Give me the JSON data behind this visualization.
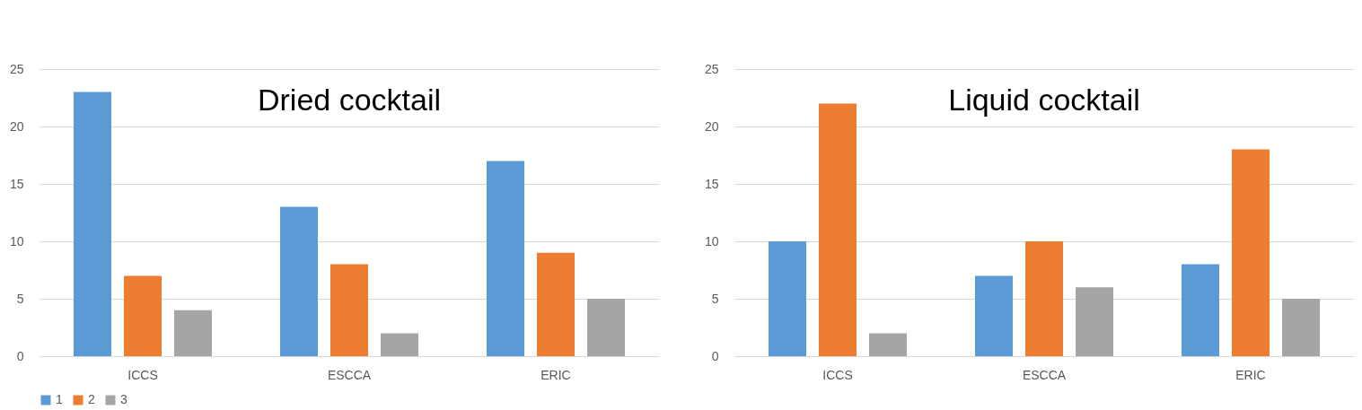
{
  "chart_data": [
    {
      "type": "bar",
      "title": "Dried cocktail",
      "categories": [
        "ICCS",
        "ESCCA",
        "ERIC"
      ],
      "series": [
        {
          "name": "1",
          "color": "#5b9bd5",
          "values": [
            23,
            13,
            17
          ]
        },
        {
          "name": "2",
          "color": "#ed7d31",
          "values": [
            7,
            8,
            9
          ]
        },
        {
          "name": "3",
          "color": "#a5a5a5",
          "values": [
            4,
            2,
            5
          ]
        }
      ],
      "ylim": [
        0,
        25
      ],
      "yticks": [
        0,
        5,
        10,
        15,
        20,
        25
      ],
      "grid": "y",
      "legend": "bottom"
    },
    {
      "type": "bar",
      "title": "Liquid cocktail",
      "categories": [
        "ICCS",
        "ESCCA",
        "ERIC"
      ],
      "series": [
        {
          "name": "1",
          "color": "#5b9bd5",
          "values": [
            10,
            7,
            8
          ]
        },
        {
          "name": "2",
          "color": "#ed7d31",
          "values": [
            22,
            10,
            18
          ]
        },
        {
          "name": "3",
          "color": "#a5a5a5",
          "values": [
            2,
            6,
            5
          ]
        }
      ],
      "ylim": [
        0,
        25
      ],
      "yticks": [
        0,
        5,
        10,
        15,
        20,
        25
      ],
      "grid": "y",
      "legend": "bottom"
    }
  ]
}
